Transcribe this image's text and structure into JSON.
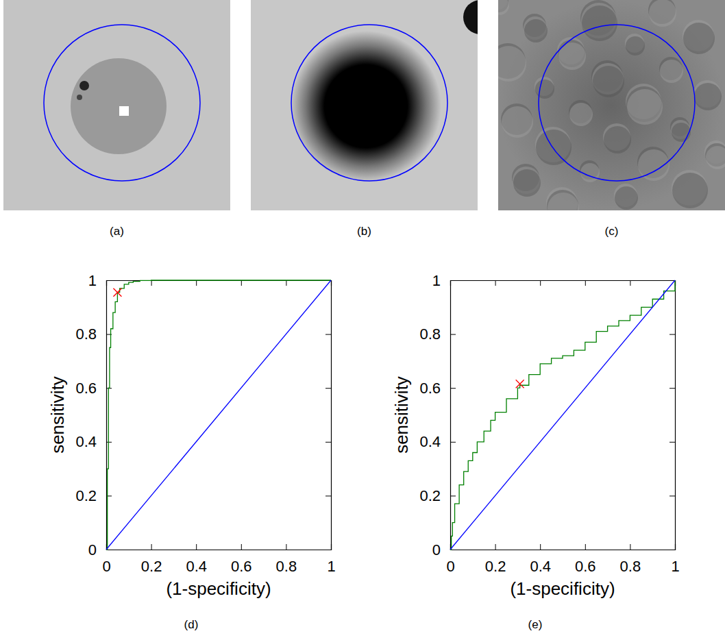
{
  "images": [
    {
      "title": "(a)"
    },
    {
      "title": "(b)"
    },
    {
      "title": "(c)"
    }
  ],
  "chart_data": [
    {
      "type": "line",
      "title": "(d)",
      "x_label": "(1-specificity)",
      "y_label": "sensitivity",
      "xlim": [
        0,
        1
      ],
      "ylim": [
        0,
        1
      ],
      "xticks": [
        0,
        0.2,
        0.4,
        0.6,
        0.8,
        1
      ],
      "yticks": [
        0,
        0.2,
        0.4,
        0.6,
        0.8,
        1
      ],
      "series": [
        {
          "color": "#008000",
          "line_style": "step",
          "x": [
            0,
            0.005,
            0.01,
            0.015,
            0.02,
            0.03,
            0.04,
            0.05,
            0.06,
            0.08,
            0.1,
            0.12,
            0.15,
            0.2,
            0.3,
            0.5,
            1
          ],
          "values": [
            0,
            0.3,
            0.6,
            0.75,
            0.82,
            0.88,
            0.92,
            0.955,
            0.97,
            0.985,
            0.992,
            0.996,
            0.999,
            1,
            1,
            1,
            1
          ]
        },
        {
          "color": "#0000ff",
          "line_style": "solid",
          "x": [
            0,
            1
          ],
          "values": [
            0,
            1
          ]
        },
        {
          "type": "scatter",
          "color": "#ff0000",
          "marker": "x",
          "x": [
            0.05
          ],
          "values": [
            0.955
          ]
        }
      ]
    },
    {
      "type": "line",
      "title": "(e)",
      "x_label": "(1-specificity)",
      "y_label": "sensitivity",
      "xlim": [
        0,
        1
      ],
      "ylim": [
        0,
        1
      ],
      "xticks": [
        0,
        0.2,
        0.4,
        0.6,
        0.8,
        1
      ],
      "yticks": [
        0,
        0.2,
        0.4,
        0.6,
        0.8,
        1
      ],
      "series": [
        {
          "color": "#008000",
          "line_style": "step",
          "x": [
            0,
            0.005,
            0.01,
            0.02,
            0.04,
            0.06,
            0.08,
            0.1,
            0.12,
            0.15,
            0.18,
            0.2,
            0.25,
            0.3,
            0.31,
            0.35,
            0.4,
            0.45,
            0.5,
            0.55,
            0.6,
            0.65,
            0.7,
            0.75,
            0.8,
            0.85,
            0.9,
            0.95,
            1
          ],
          "values": [
            0,
            0.05,
            0.1,
            0.17,
            0.24,
            0.29,
            0.33,
            0.36,
            0.4,
            0.44,
            0.48,
            0.51,
            0.56,
            0.6,
            0.61,
            0.65,
            0.69,
            0.71,
            0.72,
            0.74,
            0.77,
            0.81,
            0.83,
            0.85,
            0.87,
            0.9,
            0.93,
            0.96,
            1
          ]
        },
        {
          "color": "#0000ff",
          "line_style": "solid",
          "x": [
            0,
            1
          ],
          "values": [
            0,
            1
          ]
        },
        {
          "type": "scatter",
          "color": "#ff0000",
          "marker": "x",
          "x": [
            0.31
          ],
          "values": [
            0.615
          ]
        }
      ]
    }
  ]
}
